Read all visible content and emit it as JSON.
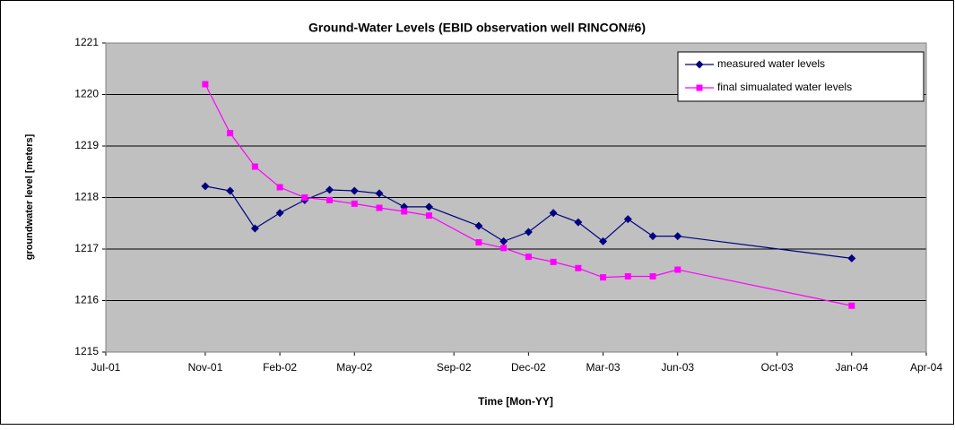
{
  "chart_data": {
    "type": "line",
    "title": "Ground-Water Levels (EBID observation well RINCON#6)",
    "x_label": "Time [Mon-YY]",
    "y_label": "groundwater level [meters]",
    "x": [
      "2001-11",
      "2001-12",
      "2002-01",
      "2002-02",
      "2002-03",
      "2002-04",
      "2002-05",
      "2002-06",
      "2002-07",
      "2002-08",
      "2002-10",
      "2002-11",
      "2002-12",
      "2003-01",
      "2003-02",
      "2003-03",
      "2003-04",
      "2003-05",
      "2003-06",
      "2004-01"
    ],
    "series": [
      {
        "name": "measured water levels",
        "color": "#000080",
        "marker": "diamond",
        "values": [
          1218.22,
          1218.13,
          1217.4,
          1217.7,
          1217.95,
          1218.15,
          1218.13,
          1218.08,
          1217.82,
          1217.82,
          1217.45,
          1217.15,
          1217.33,
          1217.7,
          1217.52,
          1217.15,
          1217.58,
          1217.25,
          1217.25,
          1216.82
        ]
      },
      {
        "name": "final simualated water levels",
        "color": "#ff00ff",
        "marker": "square",
        "values": [
          1220.2,
          1219.25,
          1218.6,
          1218.2,
          1218.0,
          1217.95,
          1217.88,
          1217.8,
          1217.73,
          1217.65,
          1217.13,
          1217.02,
          1216.85,
          1216.75,
          1216.63,
          1216.45,
          1216.47,
          1216.47,
          1216.6,
          1215.9
        ]
      }
    ],
    "xlim": [
      "2001-07",
      "2004-04"
    ],
    "xticks": [
      {
        "value": "2001-07",
        "label": "Jul-01"
      },
      {
        "value": "2001-11",
        "label": "Nov-01"
      },
      {
        "value": "2002-02",
        "label": "Feb-02"
      },
      {
        "value": "2002-05",
        "label": "May-02"
      },
      {
        "value": "2002-09",
        "label": "Sep-02"
      },
      {
        "value": "2002-12",
        "label": "Dec-02"
      },
      {
        "value": "2003-03",
        "label": "Mar-03"
      },
      {
        "value": "2003-06",
        "label": "Jun-03"
      },
      {
        "value": "2003-10",
        "label": "Oct-03"
      },
      {
        "value": "2004-01",
        "label": "Jan-04"
      },
      {
        "value": "2004-04",
        "label": "Apr-04"
      }
    ],
    "ylim": [
      1215,
      1221
    ],
    "yticks": [
      1215,
      1216,
      1217,
      1218,
      1219,
      1220,
      1221
    ],
    "grid": true,
    "legend": "upper right",
    "plot_background": "#c0c0c0"
  }
}
